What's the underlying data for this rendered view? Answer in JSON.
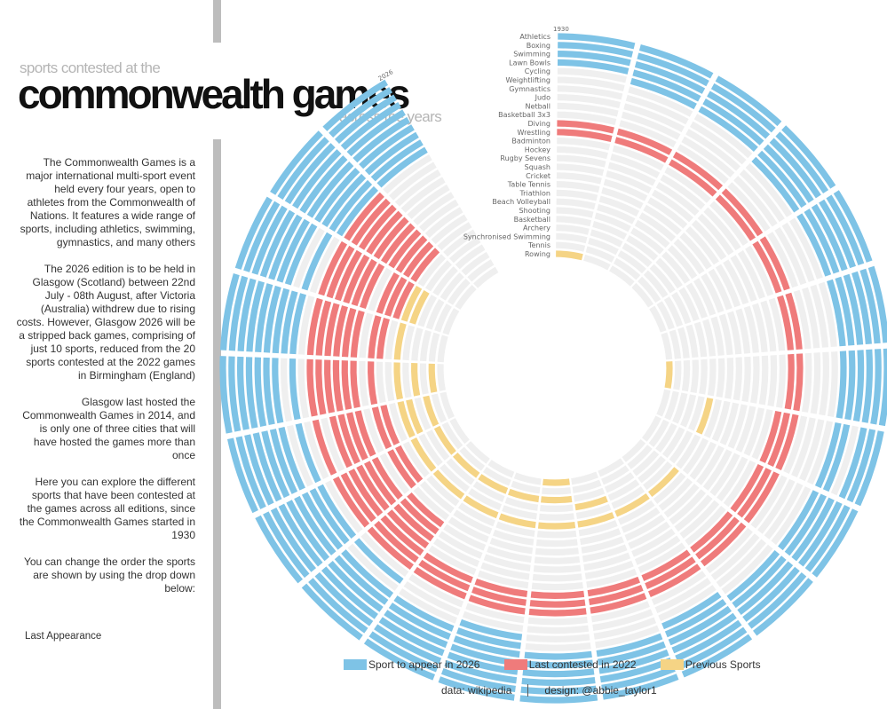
{
  "header": {
    "subtitle_top": "sports contested at the",
    "title": "commonwealth games",
    "subtitle_bottom": "across the years"
  },
  "description": [
    "The Commonwealth Games is a major international multi-sport event held every four years, open to athletes from the Commonwealth of Nations. It features a wide range of sports, including athletics, swimming, gymnastics, and many others",
    "The 2026 edition is to be held in Glasgow (Scotland) between 22nd July - 08th August, after Victoria (Australia) withdrew due to rising costs. However, Glasgow 2026 will be a stripped back games, comprising of just 10 sports, reduced from the 20 sports contested at the 2022 games in Birmingham (England)",
    "Glasgow last hosted the Commonwealth Games in 2014, and is only one of three cities that will have hosted the games more than once",
    "Here you can explore the different sports that have been contested at the games across all editions, since the Commonwealth Games started in 1930",
    "You can change the order the sports are shown by using the drop down below:"
  ],
  "dropdown": {
    "selected": "Last Appearance"
  },
  "legend": {
    "sport_2026": "Sport to appear in 2026",
    "last_2022": "Last contested in 2022",
    "previous": "Previous Sports"
  },
  "credits": {
    "data": "data: wikipedia",
    "design": "design: @abbie_taylor1"
  },
  "colors": {
    "sport_2026": "#7ec3e6",
    "last_2022": "#ef7b7b",
    "previous": "#f5d485",
    "empty": "#efefef"
  },
  "chart_data": {
    "type": "radial-timeline",
    "start_label": "1930",
    "end_label": "2026",
    "editions": [
      1930,
      1934,
      1938,
      1950,
      1954,
      1958,
      1962,
      1966,
      1970,
      1974,
      1978,
      1982,
      1986,
      1990,
      1994,
      1998,
      2002,
      2006,
      2010,
      2014,
      2018,
      2022,
      2026
    ],
    "sports": [
      {
        "name": "Athletics",
        "status": "sport_2026",
        "editions": [
          1930,
          1934,
          1938,
          1950,
          1954,
          1958,
          1962,
          1966,
          1970,
          1974,
          1978,
          1982,
          1986,
          1990,
          1994,
          1998,
          2002,
          2006,
          2010,
          2014,
          2018,
          2022,
          2026
        ]
      },
      {
        "name": "Boxing",
        "status": "sport_2026",
        "editions": [
          1930,
          1934,
          1938,
          1950,
          1954,
          1958,
          1962,
          1966,
          1970,
          1974,
          1978,
          1982,
          1986,
          1990,
          1994,
          1998,
          2002,
          2006,
          2010,
          2014,
          2018,
          2022,
          2026
        ]
      },
      {
        "name": "Swimming",
        "status": "sport_2026",
        "editions": [
          1930,
          1934,
          1938,
          1950,
          1954,
          1958,
          1962,
          1966,
          1970,
          1974,
          1978,
          1982,
          1986,
          1990,
          1994,
          1998,
          2002,
          2006,
          2010,
          2014,
          2018,
          2022,
          2026
        ]
      },
      {
        "name": "Lawn Bowls",
        "status": "sport_2026",
        "editions": [
          1930,
          1934,
          1938,
          1950,
          1954,
          1958,
          1962,
          1970,
          1974,
          1978,
          1982,
          1986,
          1990,
          1994,
          1998,
          2002,
          2006,
          2010,
          2014,
          2018,
          2022,
          2026
        ]
      },
      {
        "name": "Cycling",
        "status": "sport_2026",
        "editions": [
          1934,
          1938,
          1950,
          1954,
          1958,
          1962,
          1966,
          1970,
          1974,
          1978,
          1982,
          1986,
          1990,
          1994,
          1998,
          2002,
          2006,
          2010,
          2014,
          2018,
          2022,
          2026
        ]
      },
      {
        "name": "Weightlifting",
        "status": "sport_2026",
        "editions": [
          1950,
          1954,
          1958,
          1962,
          1966,
          1970,
          1974,
          1978,
          1982,
          1986,
          1990,
          1994,
          1998,
          2002,
          2006,
          2010,
          2014,
          2018,
          2022,
          2026
        ]
      },
      {
        "name": "Gymnastics",
        "status": "sport_2026",
        "editions": [
          1978,
          1990,
          1994,
          1998,
          2002,
          2006,
          2010,
          2014,
          2018,
          2022,
          2026
        ]
      },
      {
        "name": "Judo",
        "status": "sport_2026",
        "editions": [
          1990,
          2002,
          2014,
          2022,
          2026
        ]
      },
      {
        "name": "Netball",
        "status": "sport_2026",
        "editions": [
          1998,
          2002,
          2006,
          2010,
          2014,
          2018,
          2022,
          2026
        ]
      },
      {
        "name": "Basketball 3x3",
        "status": "sport_2026",
        "editions": [
          2022,
          2026
        ]
      },
      {
        "name": "Diving",
        "status": "last_2022",
        "editions": [
          1930,
          1934,
          1938,
          1950,
          1954,
          1958,
          1962,
          1966,
          1970,
          1974,
          1978,
          1982,
          1986,
          1990,
          1994,
          1998,
          2002,
          2006,
          2010,
          2014,
          2018,
          2022
        ]
      },
      {
        "name": "Wrestling",
        "status": "last_2022",
        "editions": [
          1930,
          1934,
          1938,
          1950,
          1954,
          1958,
          1962,
          1966,
          1970,
          1974,
          1978,
          1982,
          1986,
          1990,
          1994,
          1998,
          2002,
          2010,
          2014,
          2018,
          2022
        ]
      },
      {
        "name": "Badminton",
        "status": "last_2022",
        "editions": [
          1966,
          1970,
          1974,
          1978,
          1982,
          1986,
          1990,
          1994,
          1998,
          2002,
          2006,
          2010,
          2014,
          2018,
          2022
        ]
      },
      {
        "name": "Hockey",
        "status": "last_2022",
        "editions": [
          1998,
          2002,
          2006,
          2010,
          2014,
          2018,
          2022
        ]
      },
      {
        "name": "Rugby Sevens",
        "status": "last_2022",
        "editions": [
          1998,
          2002,
          2006,
          2010,
          2014,
          2018,
          2022
        ]
      },
      {
        "name": "Squash",
        "status": "last_2022",
        "editions": [
          1998,
          2002,
          2006,
          2010,
          2014,
          2018,
          2022
        ]
      },
      {
        "name": "Cricket",
        "status": "last_2022",
        "editions": [
          1998,
          2022
        ]
      },
      {
        "name": "Table Tennis",
        "status": "last_2022",
        "editions": [
          2002,
          2006,
          2010,
          2014,
          2018,
          2022
        ]
      },
      {
        "name": "Triathlon",
        "status": "last_2022",
        "editions": [
          2002,
          2006,
          2014,
          2018,
          2022
        ]
      },
      {
        "name": "Beach Volleyball",
        "status": "last_2022",
        "editions": [
          2018,
          2022
        ]
      },
      {
        "name": "Shooting",
        "status": "previous",
        "editions": [
          1966,
          1974,
          1978,
          1982,
          1986,
          1990,
          1994,
          1998,
          2002,
          2006,
          2010,
          2014,
          2018
        ]
      },
      {
        "name": "Basketball",
        "status": "previous",
        "editions": [
          2006,
          2018
        ]
      },
      {
        "name": "Archery",
        "status": "previous",
        "editions": [
          1982,
          2010
        ]
      },
      {
        "name": "Synchronised Swimming",
        "status": "previous",
        "editions": [
          1986,
          1990,
          1994,
          1998,
          2002,
          2006
        ]
      },
      {
        "name": "Tennis",
        "status": "previous",
        "editions": [
          2010
        ]
      },
      {
        "name": "Rowing",
        "status": "previous",
        "editions": [
          1930,
          1962,
          1986
        ]
      }
    ]
  }
}
